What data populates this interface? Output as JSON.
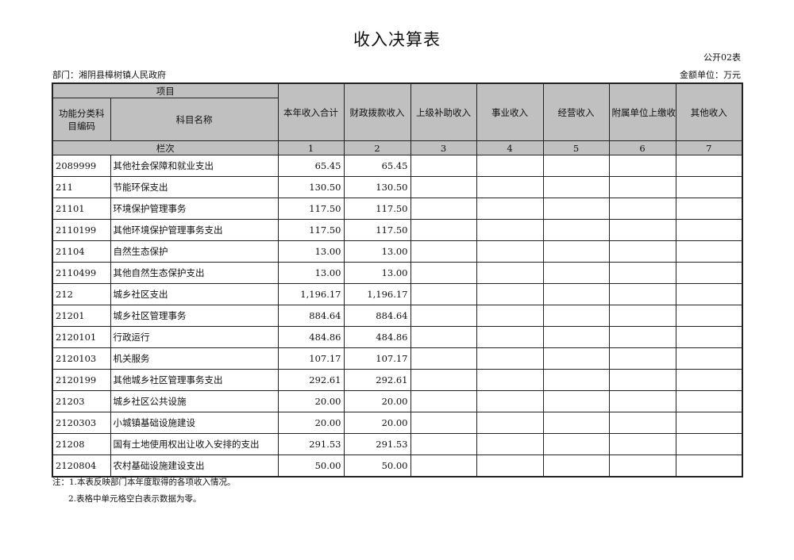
{
  "title": "收入决算表",
  "table_code": "公开02表",
  "department": "部门：湘阴县樟树镇人民政府",
  "unit": "金额单位：万元",
  "headers": {
    "item": "项目",
    "code": "功能分类科目编码",
    "name": "科目名称",
    "cols": [
      "本年收入合计",
      "财政拨款收入",
      "上级补助收入",
      "事业收入",
      "经营收入",
      "附属单位上缴收入",
      "其他收入"
    ],
    "seq_label": "栏次",
    "seq": [
      "1",
      "2",
      "3",
      "4",
      "5",
      "6",
      "7"
    ]
  },
  "rows": [
    {
      "code": "2089999",
      "name": "其他社会保障和就业支出",
      "v": [
        "65.45",
        "65.45",
        "",
        "",
        "",
        "",
        ""
      ]
    },
    {
      "code": "211",
      "name": "节能环保支出",
      "v": [
        "130.50",
        "130.50",
        "",
        "",
        "",
        "",
        ""
      ]
    },
    {
      "code": "21101",
      "name": "环境保护管理事务",
      "v": [
        "117.50",
        "117.50",
        "",
        "",
        "",
        "",
        ""
      ]
    },
    {
      "code": "2110199",
      "name": "其他环境保护管理事务支出",
      "v": [
        "117.50",
        "117.50",
        "",
        "",
        "",
        "",
        ""
      ]
    },
    {
      "code": "21104",
      "name": "自然生态保护",
      "v": [
        "13.00",
        "13.00",
        "",
        "",
        "",
        "",
        ""
      ]
    },
    {
      "code": "2110499",
      "name": "其他自然生态保护支出",
      "v": [
        "13.00",
        "13.00",
        "",
        "",
        "",
        "",
        ""
      ]
    },
    {
      "code": "212",
      "name": "城乡社区支出",
      "v": [
        "1,196.17",
        "1,196.17",
        "",
        "",
        "",
        "",
        ""
      ]
    },
    {
      "code": "21201",
      "name": "城乡社区管理事务",
      "v": [
        "884.64",
        "884.64",
        "",
        "",
        "",
        "",
        ""
      ]
    },
    {
      "code": "2120101",
      "name": "行政运行",
      "v": [
        "484.86",
        "484.86",
        "",
        "",
        "",
        "",
        ""
      ]
    },
    {
      "code": "2120103",
      "name": "机关服务",
      "v": [
        "107.17",
        "107.17",
        "",
        "",
        "",
        "",
        ""
      ]
    },
    {
      "code": "2120199",
      "name": "其他城乡社区管理事务支出",
      "v": [
        "292.61",
        "292.61",
        "",
        "",
        "",
        "",
        ""
      ]
    },
    {
      "code": "21203",
      "name": "城乡社区公共设施",
      "v": [
        "20.00",
        "20.00",
        "",
        "",
        "",
        "",
        ""
      ]
    },
    {
      "code": "2120303",
      "name": "小城镇基础设施建设",
      "v": [
        "20.00",
        "20.00",
        "",
        "",
        "",
        "",
        ""
      ]
    },
    {
      "code": "21208",
      "name": "国有土地使用权出让收入安排的支出",
      "v": [
        "291.53",
        "291.53",
        "",
        "",
        "",
        "",
        ""
      ]
    },
    {
      "code": "2120804",
      "name": "农村基础设施建设支出",
      "v": [
        "50.00",
        "50.00",
        "",
        "",
        "",
        "",
        ""
      ]
    }
  ],
  "notes": [
    "注：1.本表反映部门本年度取得的各项收入情况。",
    "2.表格中单元格空白表示数据为零。"
  ]
}
